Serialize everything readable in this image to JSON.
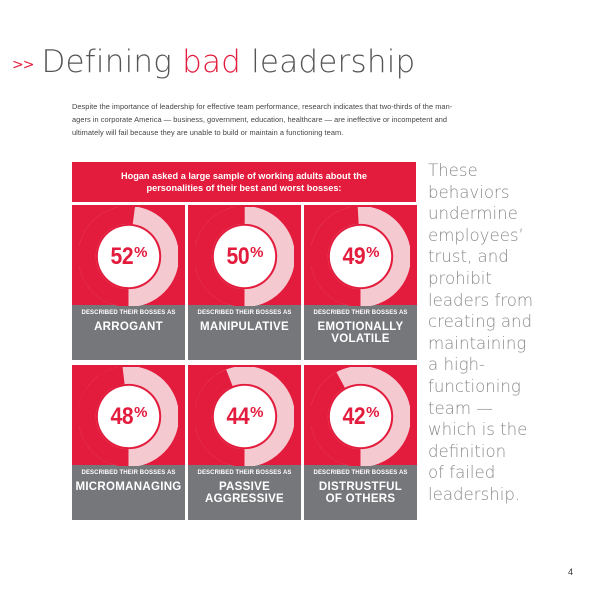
{
  "header": {
    "chevrons": ">>",
    "title_before": "Defining ",
    "title_accent": "bad",
    "title_after": " leadership"
  },
  "intro": {
    "lines": [
      "Despite the importance of leadership for effective team performance, research indicates that two-thirds of the man-",
      "agers in corporate America — business, government, education, healthcare — are ineffective or incompetent and",
      "ultimately will fail because they are unable to build or maintain a functioning team."
    ]
  },
  "banner": {
    "line1": "Hogan asked a large sample of working adults about the",
    "line2": "personalities of their best and worst bosses:"
  },
  "colors": {
    "red": "#e31b3c",
    "gray": "#76777a",
    "ring_light": "#f4c9cf",
    "text_gray": "#8a8a8a"
  },
  "tiles": [
    {
      "value": 52,
      "symbol": "%",
      "caption": "DESCRIBED THEIR BOSSES AS",
      "word1": "ARROGANT",
      "word2": ""
    },
    {
      "value": 50,
      "symbol": "%",
      "caption": "DESCRIBED THEIR BOSSES AS",
      "word1": "MANIPULATIVE",
      "word2": ""
    },
    {
      "value": 49,
      "symbol": "%",
      "caption": "DESCRIBED THEIR BOSSES AS",
      "word1": "EMOTIONALLY",
      "word2": "VOLATILE"
    },
    {
      "value": 48,
      "symbol": "%",
      "caption": "DESCRIBED THEIR BOSSES AS",
      "word1": "MICROMANAGING",
      "word2": ""
    },
    {
      "value": 44,
      "symbol": "%",
      "caption": "DESCRIBED THEIR BOSSES AS",
      "word1": "PASSIVE",
      "word2": "AGGRESSIVE"
    },
    {
      "value": 42,
      "symbol": "%",
      "caption": "DESCRIBED THEIR BOSSES AS",
      "word1": "DISTRUSTFUL",
      "word2": "OF OTHERS"
    }
  ],
  "sidebar": {
    "lines": [
      "These",
      "behaviors",
      "undermine",
      "employees’",
      "trust, and",
      "prohibit",
      "leaders from",
      "creating and",
      "maintaining",
      "a high-",
      "functioning",
      "team —",
      "which is the",
      "definition",
      "of failed",
      "leadership."
    ]
  },
  "page_number": "4"
}
